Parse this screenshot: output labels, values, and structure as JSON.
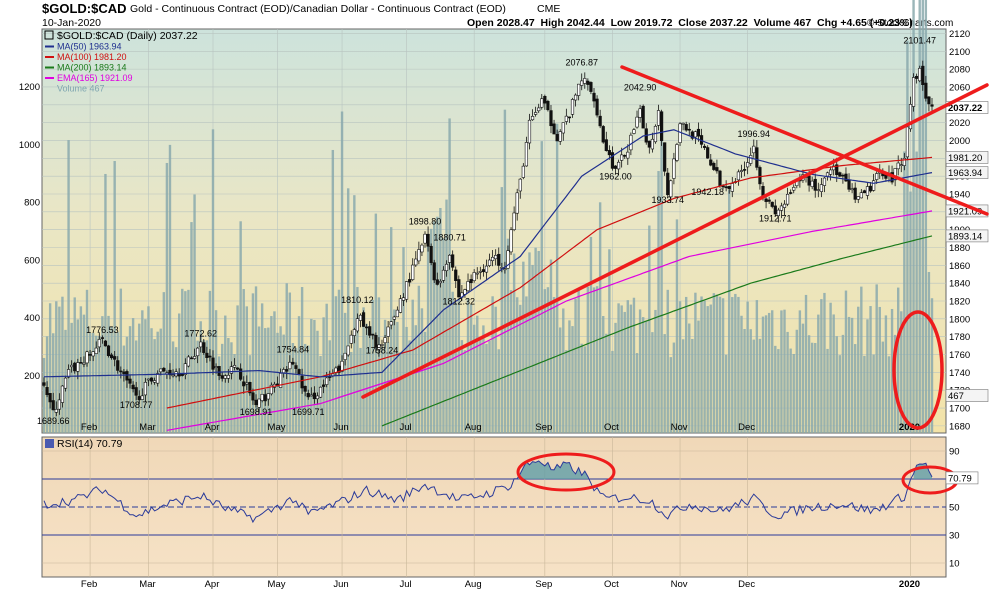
{
  "header": {
    "symbol": "$GOLD:$CAD",
    "description": "Gold - Continuous Contract (EOD)/Canadian Dollar - Continuous Contract (EOD)",
    "exchange": "CME",
    "date": "10-Jan-2020",
    "ohlc_text": "Open 2028.47  High 2042.44  Low 2019.72  Close 2037.22  Volume 467  Chg +4.65 (+0.23%)",
    "copyright": "© StockCharts.com"
  },
  "legend": [
    {
      "label": "$GOLD:$CAD (Daily) 2037.22",
      "color": "#000000",
      "marker": "box"
    },
    {
      "label": "MA(50) 1963.94",
      "color": "#1f2f8f",
      "marker": "line"
    },
    {
      "label": "MA(100) 1981.20",
      "color": "#d01010",
      "marker": "line"
    },
    {
      "label": "MA(200) 1893.14",
      "color": "#1a7a1a",
      "marker": "line"
    },
    {
      "label": "EMA(165) 1921.09",
      "color": "#e000e0",
      "marker": "line"
    },
    {
      "label": "Volume 467",
      "color": "#7fa6b0",
      "marker": "none"
    }
  ],
  "rsi_legend": {
    "label": "RSI(14) 70.79"
  },
  "chart_data": [
    {
      "type": "candlestick",
      "title": "$GOLD:$CAD (Daily) 2037.22",
      "x_months": [
        "Feb",
        "Mar",
        "Apr",
        "May",
        "Jun",
        "Jul",
        "Aug",
        "Sep",
        "Oct",
        "Nov",
        "Dec",
        "2020"
      ],
      "y_ticks": [
        1680,
        1700,
        1720,
        1740,
        1760,
        1780,
        1800,
        1820,
        1840,
        1860,
        1880,
        1900,
        1920,
        1940,
        1960,
        1980,
        2000,
        2020,
        2040,
        2060,
        2080,
        2100,
        2120
      ],
      "ylim": [
        1672,
        2125
      ],
      "volume_ticks": [
        "200",
        "400",
        "600",
        "800",
        "1000",
        "1200"
      ],
      "volume_ylim": [
        0,
        1400
      ],
      "price_anchors": [
        {
          "t": 0,
          "v": 1730
        },
        {
          "t": 3,
          "v": 1693
        },
        {
          "t": 8,
          "v": 1740
        },
        {
          "t": 15,
          "v": 1760
        },
        {
          "t": 19,
          "v": 1776
        },
        {
          "t": 25,
          "v": 1740
        },
        {
          "t": 30,
          "v": 1711
        },
        {
          "t": 37,
          "v": 1740
        },
        {
          "t": 45,
          "v": 1742
        },
        {
          "t": 51,
          "v": 1772
        },
        {
          "t": 57,
          "v": 1738
        },
        {
          "t": 63,
          "v": 1745
        },
        {
          "t": 69,
          "v": 1702
        },
        {
          "t": 75,
          "v": 1725
        },
        {
          "t": 81,
          "v": 1752
        },
        {
          "t": 86,
          "v": 1708
        },
        {
          "t": 91,
          "v": 1725
        },
        {
          "t": 97,
          "v": 1748
        },
        {
          "t": 102,
          "v": 1805
        },
        {
          "t": 106,
          "v": 1780
        },
        {
          "t": 110,
          "v": 1768
        },
        {
          "t": 115,
          "v": 1812
        },
        {
          "t": 120,
          "v": 1855
        },
        {
          "t": 124,
          "v": 1892
        },
        {
          "t": 128,
          "v": 1835
        },
        {
          "t": 132,
          "v": 1876
        },
        {
          "t": 135,
          "v": 1825
        },
        {
          "t": 140,
          "v": 1848
        },
        {
          "t": 146,
          "v": 1868
        },
        {
          "t": 150,
          "v": 1862
        },
        {
          "t": 155,
          "v": 1955
        },
        {
          "t": 158,
          "v": 2018
        },
        {
          "t": 162,
          "v": 2045
        },
        {
          "t": 167,
          "v": 2005
        },
        {
          "t": 171,
          "v": 2030
        },
        {
          "t": 175,
          "v": 2070
        },
        {
          "t": 179,
          "v": 2050
        },
        {
          "t": 182,
          "v": 2000
        },
        {
          "t": 186,
          "v": 1965
        },
        {
          "t": 190,
          "v": 1992
        },
        {
          "t": 194,
          "v": 2030
        },
        {
          "t": 197,
          "v": 1990
        },
        {
          "t": 200,
          "v": 2035
        },
        {
          "t": 203,
          "v": 1938
        },
        {
          "t": 207,
          "v": 2020
        },
        {
          "t": 212,
          "v": 2005
        },
        {
          "t": 216,
          "v": 1982
        },
        {
          "t": 221,
          "v": 1946
        },
        {
          "t": 226,
          "v": 1960
        },
        {
          "t": 231,
          "v": 1992
        },
        {
          "t": 234,
          "v": 1940
        },
        {
          "t": 238,
          "v": 1916
        },
        {
          "t": 242,
          "v": 1935
        },
        {
          "t": 247,
          "v": 1960
        },
        {
          "t": 252,
          "v": 1945
        },
        {
          "t": 256,
          "v": 1972
        },
        {
          "t": 261,
          "v": 1950
        },
        {
          "t": 265,
          "v": 1932
        },
        {
          "t": 269,
          "v": 1948
        },
        {
          "t": 273,
          "v": 1966
        },
        {
          "t": 276,
          "v": 1958
        },
        {
          "t": 280,
          "v": 1985
        },
        {
          "t": 283,
          "v": 2070
        },
        {
          "t": 285,
          "v": 2078
        },
        {
          "t": 287,
          "v": 2048
        },
        {
          "t": 289,
          "v": 2037
        }
      ],
      "ma50_anchors": [
        {
          "t": 0,
          "v": 1735
        },
        {
          "t": 40,
          "v": 1738
        },
        {
          "t": 70,
          "v": 1742
        },
        {
          "t": 90,
          "v": 1735
        },
        {
          "t": 110,
          "v": 1740
        },
        {
          "t": 130,
          "v": 1810
        },
        {
          "t": 155,
          "v": 1870
        },
        {
          "t": 175,
          "v": 1960
        },
        {
          "t": 195,
          "v": 2005
        },
        {
          "t": 205,
          "v": 2012
        },
        {
          "t": 225,
          "v": 1985
        },
        {
          "t": 250,
          "v": 1962
        },
        {
          "t": 270,
          "v": 1952
        },
        {
          "t": 289,
          "v": 1964
        }
      ],
      "ma100_anchors": [
        {
          "t": 40,
          "v": 1700
        },
        {
          "t": 90,
          "v": 1735
        },
        {
          "t": 120,
          "v": 1765
        },
        {
          "t": 155,
          "v": 1835
        },
        {
          "t": 180,
          "v": 1900
        },
        {
          "t": 205,
          "v": 1935
        },
        {
          "t": 230,
          "v": 1958
        },
        {
          "t": 260,
          "v": 1972
        },
        {
          "t": 289,
          "v": 1981
        }
      ],
      "ma200_anchors": [
        {
          "t": 110,
          "v": 1680
        },
        {
          "t": 150,
          "v": 1735
        },
        {
          "t": 190,
          "v": 1790
        },
        {
          "t": 230,
          "v": 1840
        },
        {
          "t": 260,
          "v": 1868
        },
        {
          "t": 289,
          "v": 1893
        }
      ],
      "ema165_anchors": [
        {
          "t": 40,
          "v": 1675
        },
        {
          "t": 90,
          "v": 1705
        },
        {
          "t": 130,
          "v": 1750
        },
        {
          "t": 170,
          "v": 1820
        },
        {
          "t": 210,
          "v": 1870
        },
        {
          "t": 250,
          "v": 1898
        },
        {
          "t": 289,
          "v": 1921
        }
      ],
      "annotations": [
        {
          "text": "1689.66",
          "t": 3,
          "v": 1682
        },
        {
          "text": "1776.53",
          "t": 19,
          "v": 1784
        },
        {
          "text": "1708.77",
          "t": 30,
          "v": 1700
        },
        {
          "text": "1772.62",
          "t": 51,
          "v": 1780
        },
        {
          "text": "1698.91",
          "t": 69,
          "v": 1692
        },
        {
          "text": "1754.84",
          "t": 81,
          "v": 1762
        },
        {
          "text": "1699.71",
          "t": 86,
          "v": 1692
        },
        {
          "text": "1810.12",
          "t": 102,
          "v": 1818
        },
        {
          "text": "1758.24",
          "t": 110,
          "v": 1761
        },
        {
          "text": "1898.80",
          "t": 124,
          "v": 1906
        },
        {
          "text": "1880.71",
          "t": 132,
          "v": 1888
        },
        {
          "text": "1812.32",
          "t": 135,
          "v": 1816
        },
        {
          "text": "2076.87",
          "t": 175,
          "v": 2084
        },
        {
          "text": "1962.00",
          "t": 186,
          "v": 1956
        },
        {
          "text": "2042.90",
          "t": 194,
          "v": 2056
        },
        {
          "text": "1933.74",
          "t": 203,
          "v": 1930
        },
        {
          "text": "1942.18",
          "t": 216,
          "v": 1939
        },
        {
          "text": "1996.94",
          "t": 231,
          "v": 2004
        },
        {
          "text": "1912.71",
          "t": 238,
          "v": 1909
        },
        {
          "text": "2101.47",
          "t": 285,
          "v": 2109
        }
      ],
      "right_labels": [
        {
          "text": "2037.22",
          "v": 2037,
          "bold": true
        },
        {
          "text": "1981.20",
          "v": 1981
        },
        {
          "text": "1963.94",
          "v": 1964
        },
        {
          "text": "1921.09",
          "v": 1921
        },
        {
          "text": "1893.14",
          "v": 1893
        },
        {
          "text": "467",
          "v": 1714
        }
      ]
    },
    {
      "type": "line",
      "title": "RSI(14) 70.79",
      "y_ticks": [
        10,
        30,
        50,
        70,
        90
      ],
      "ylim": [
        0,
        100
      ],
      "reference_lines": [
        30,
        50,
        70
      ],
      "last_value_label": "70.79",
      "rsi_anchors": [
        {
          "t": 0,
          "v": 52
        },
        {
          "t": 10,
          "v": 55
        },
        {
          "t": 19,
          "v": 63
        },
        {
          "t": 30,
          "v": 44
        },
        {
          "t": 40,
          "v": 52
        },
        {
          "t": 51,
          "v": 58
        },
        {
          "t": 60,
          "v": 48
        },
        {
          "t": 69,
          "v": 42
        },
        {
          "t": 81,
          "v": 56
        },
        {
          "t": 86,
          "v": 45
        },
        {
          "t": 95,
          "v": 52
        },
        {
          "t": 105,
          "v": 62
        },
        {
          "t": 115,
          "v": 55
        },
        {
          "t": 124,
          "v": 66
        },
        {
          "t": 135,
          "v": 55
        },
        {
          "t": 145,
          "v": 60
        },
        {
          "t": 152,
          "v": 66
        },
        {
          "t": 157,
          "v": 80
        },
        {
          "t": 161,
          "v": 84
        },
        {
          "t": 166,
          "v": 76
        },
        {
          "t": 170,
          "v": 80
        },
        {
          "t": 176,
          "v": 73
        },
        {
          "t": 182,
          "v": 56
        },
        {
          "t": 190,
          "v": 57
        },
        {
          "t": 197,
          "v": 55
        },
        {
          "t": 203,
          "v": 44
        },
        {
          "t": 210,
          "v": 52
        },
        {
          "t": 220,
          "v": 47
        },
        {
          "t": 231,
          "v": 56
        },
        {
          "t": 238,
          "v": 44
        },
        {
          "t": 250,
          "v": 50
        },
        {
          "t": 260,
          "v": 52
        },
        {
          "t": 270,
          "v": 47
        },
        {
          "t": 280,
          "v": 58
        },
        {
          "t": 284,
          "v": 79
        },
        {
          "t": 286,
          "v": 83
        },
        {
          "t": 289,
          "v": 71
        }
      ]
    }
  ]
}
